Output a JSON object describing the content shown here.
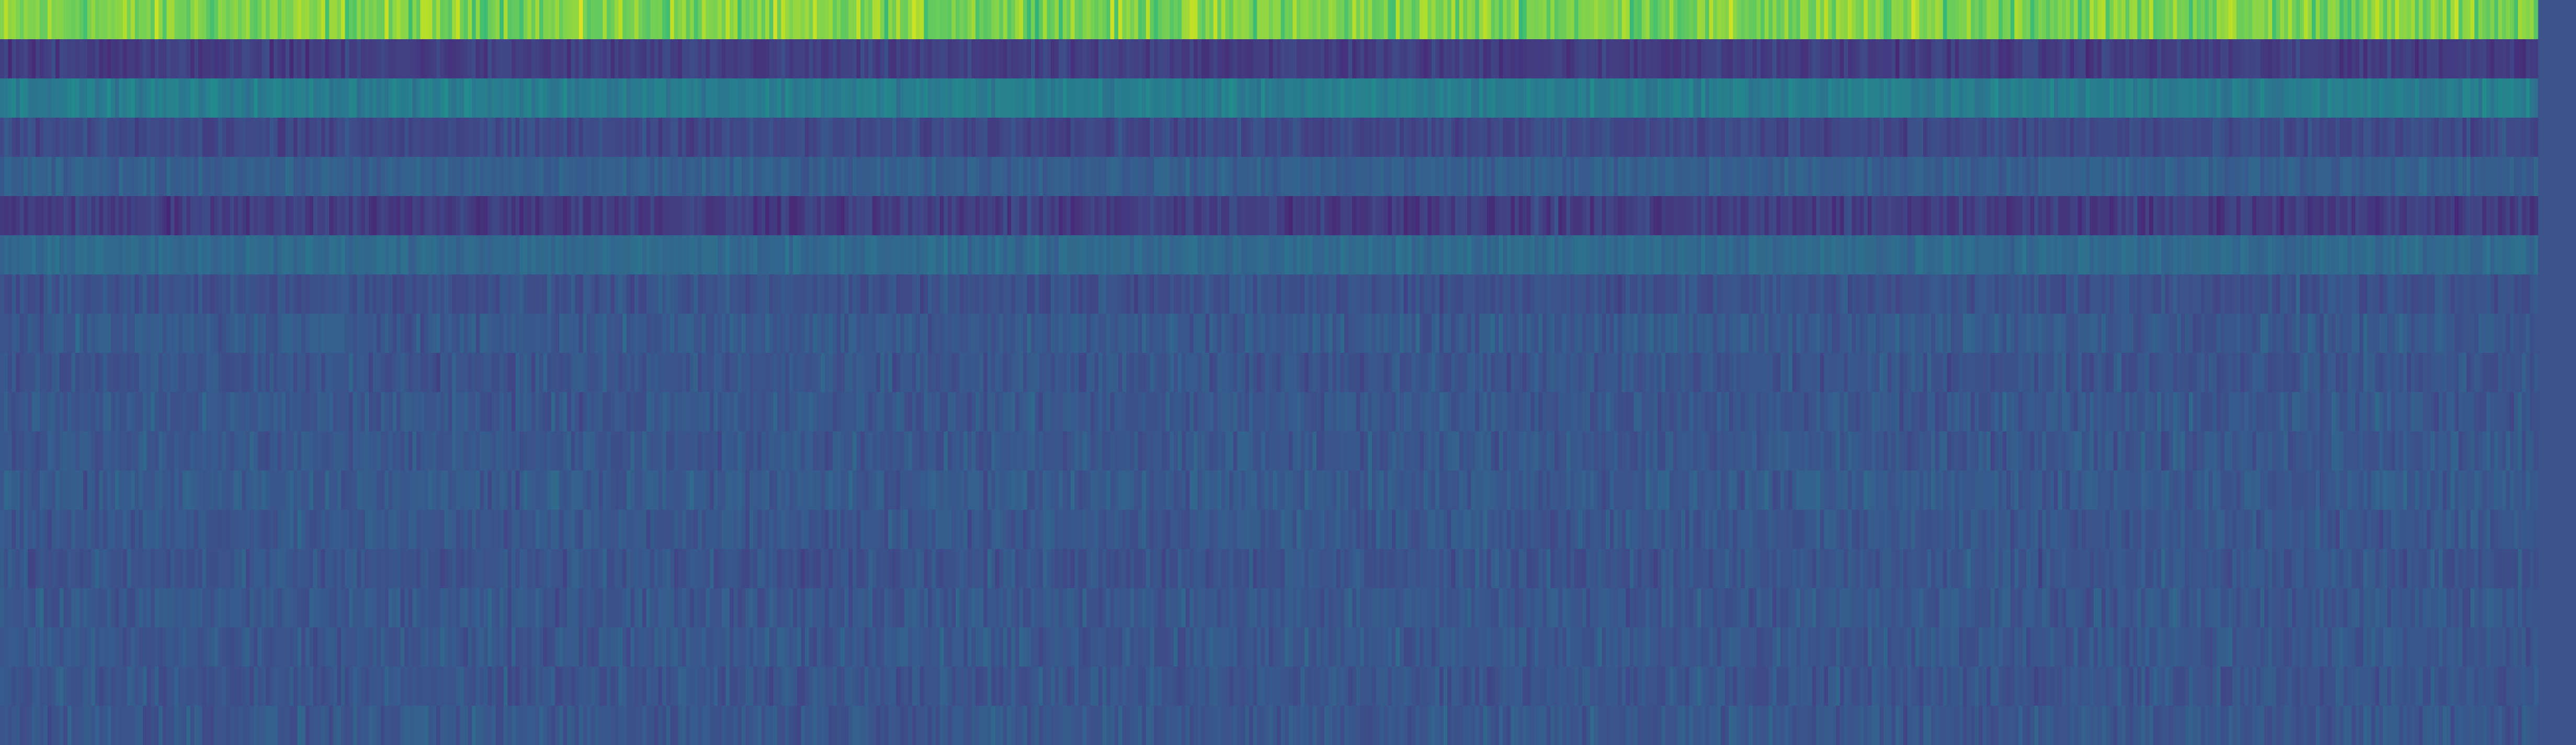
{
  "chart_data": {
    "type": "heatmap",
    "colormap": "viridis",
    "title": "",
    "xlabel": "",
    "ylabel": "",
    "axes_visible": false,
    "legend": "none",
    "grid": false,
    "value_range": [
      0,
      1
    ],
    "n_rows": 19,
    "n_cols": 640,
    "row_labels": [],
    "col_labels": [],
    "row_profiles": [
      {
        "row": 1,
        "mean": 0.8,
        "spread": 0.1
      },
      {
        "row": 2,
        "mean": 0.18,
        "spread": 0.05
      },
      {
        "row": 3,
        "mean": 0.42,
        "spread": 0.05
      },
      {
        "row": 4,
        "mean": 0.22,
        "spread": 0.05
      },
      {
        "row": 5,
        "mean": 0.3,
        "spread": 0.04
      },
      {
        "row": 6,
        "mean": 0.18,
        "spread": 0.06
      },
      {
        "row": 7,
        "mean": 0.34,
        "spread": 0.04
      },
      {
        "row": 8,
        "mean": 0.25,
        "spread": 0.05
      },
      {
        "row": 9,
        "mean": 0.28,
        "spread": 0.05
      },
      {
        "row": 10,
        "mean": 0.26,
        "spread": 0.05
      },
      {
        "row": 11,
        "mean": 0.27,
        "spread": 0.05
      },
      {
        "row": 12,
        "mean": 0.27,
        "spread": 0.05
      },
      {
        "row": 13,
        "mean": 0.28,
        "spread": 0.05
      },
      {
        "row": 14,
        "mean": 0.27,
        "spread": 0.05
      },
      {
        "row": 15,
        "mean": 0.26,
        "spread": 0.05
      },
      {
        "row": 16,
        "mean": 0.27,
        "spread": 0.05
      },
      {
        "row": 17,
        "mean": 0.27,
        "spread": 0.05
      },
      {
        "row": 18,
        "mean": 0.26,
        "spread": 0.05
      },
      {
        "row": 19,
        "mean": 0.27,
        "spread": 0.05
      }
    ],
    "background_color": "#3b528b"
  }
}
